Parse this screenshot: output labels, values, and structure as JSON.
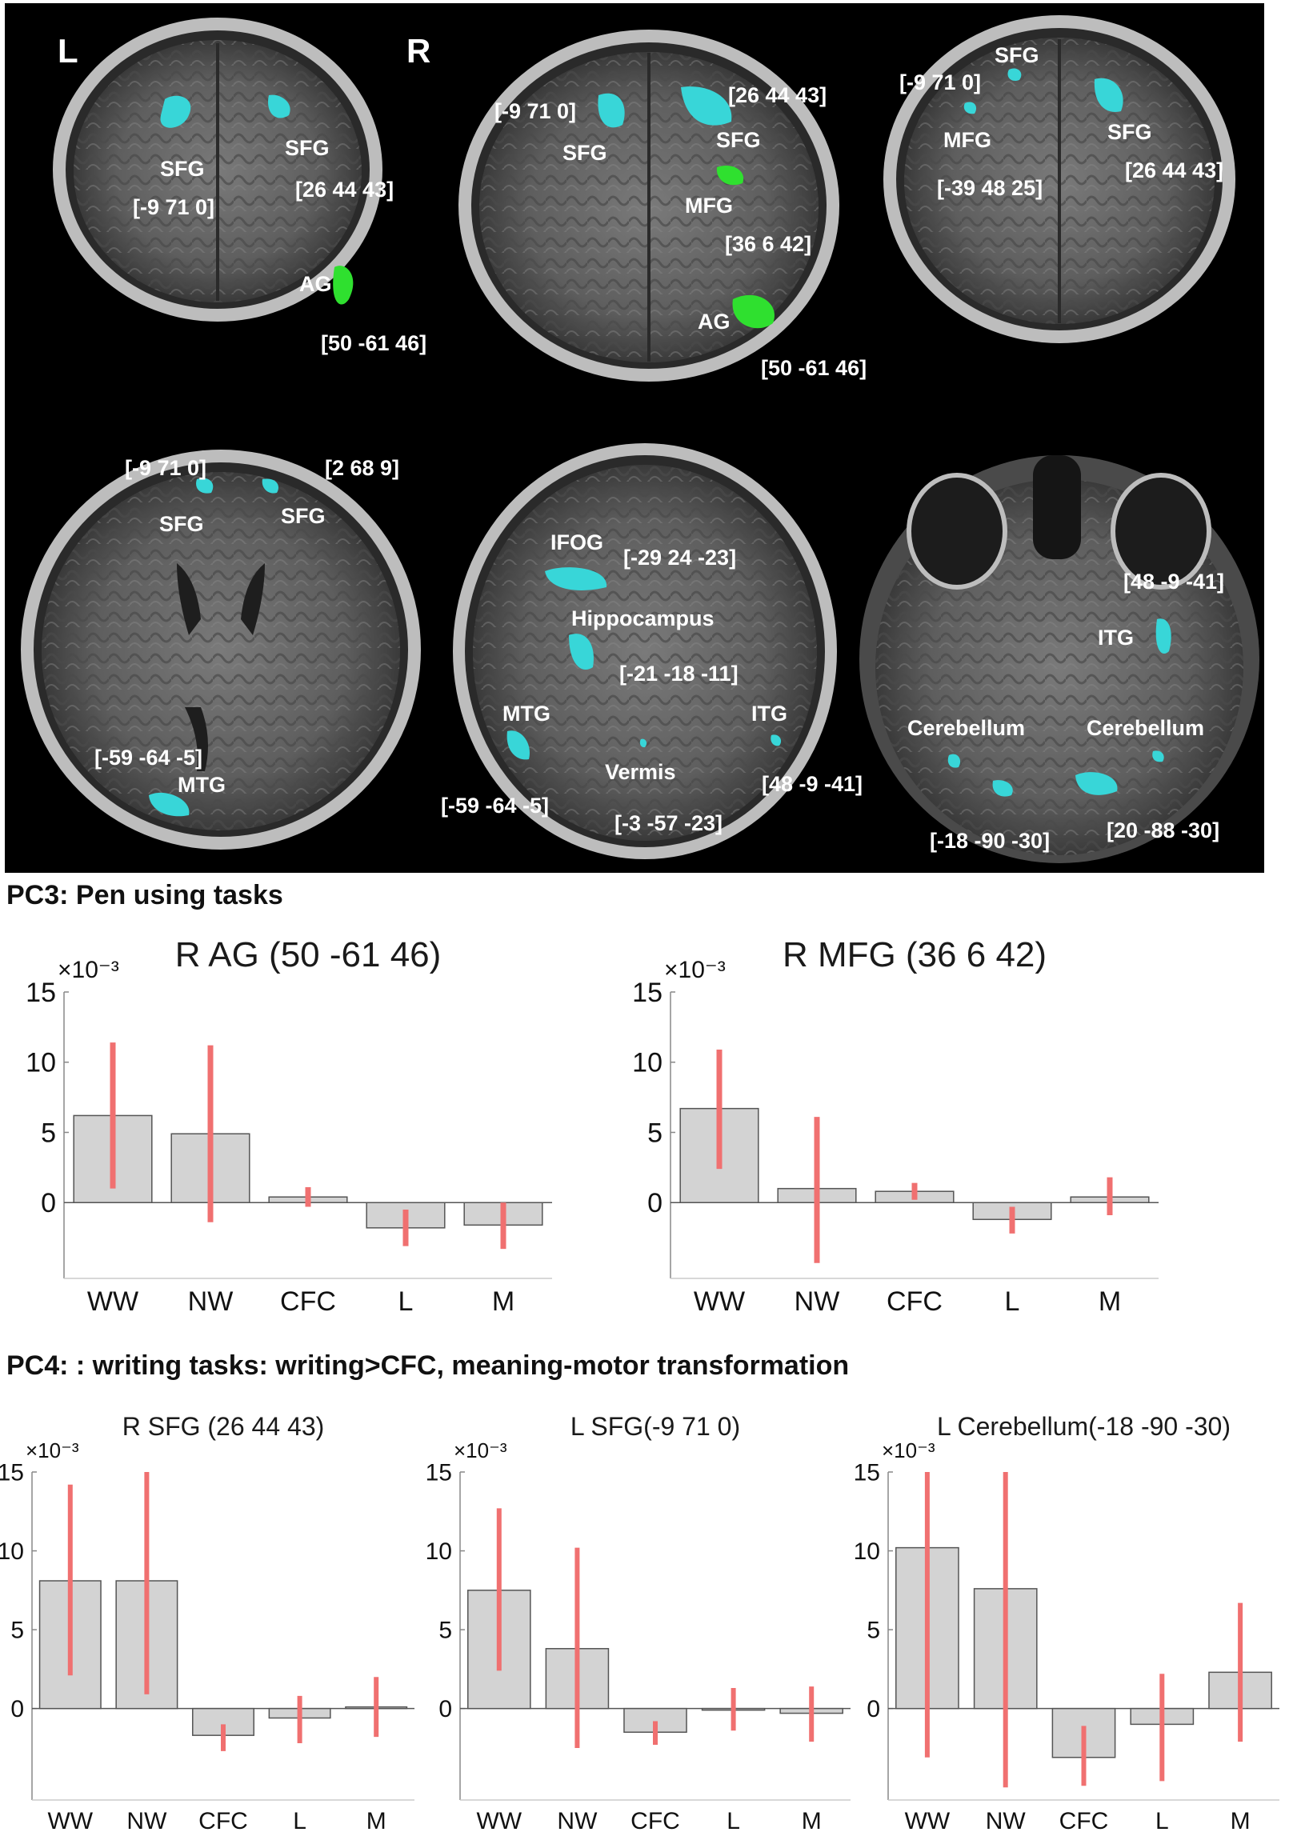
{
  "brain_figure": {
    "orientation": {
      "left": "L",
      "right": "R"
    },
    "colors": {
      "cyan_cluster": "#38d6d8",
      "green_cluster": "#2fe02f",
      "label": "#ffffff",
      "background": "#000000"
    },
    "slices": [
      {
        "labels": [
          {
            "text": "SFG"
          },
          {
            "text": "SFG"
          },
          {
            "text": "[-9 71 0]"
          },
          {
            "text": "[26 44 43]"
          },
          {
            "text": "AG"
          },
          {
            "text": "[50 -61 46]"
          }
        ]
      },
      {
        "labels": [
          {
            "text": "[-9 71 0]"
          },
          {
            "text": "[26 44 43]"
          },
          {
            "text": "SFG"
          },
          {
            "text": "SFG"
          },
          {
            "text": "MFG"
          },
          {
            "text": "[36 6 42]"
          },
          {
            "text": "AG"
          },
          {
            "text": "[50 -61 46]"
          }
        ]
      },
      {
        "labels": [
          {
            "text": "SFG"
          },
          {
            "text": "[-9 71 0]"
          },
          {
            "text": "MFG"
          },
          {
            "text": "SFG"
          },
          {
            "text": "[-39 48 25]"
          },
          {
            "text": "[26 44 43]"
          }
        ]
      },
      {
        "labels": [
          {
            "text": "[-9 71 0]"
          },
          {
            "text": "[2 68 9]"
          },
          {
            "text": "SFG"
          },
          {
            "text": "SFG"
          },
          {
            "text": "[-59 -64 -5]"
          },
          {
            "text": "MTG"
          }
        ]
      },
      {
        "labels": [
          {
            "text": "IFOG"
          },
          {
            "text": "[-29 24 -23]"
          },
          {
            "text": "Hippocampus"
          },
          {
            "text": "[-21 -18 -11]"
          },
          {
            "text": "MTG"
          },
          {
            "text": "ITG"
          },
          {
            "text": "Vermis"
          },
          {
            "text": "[48 -9 -41]"
          },
          {
            "text": "[-59 -64 -5]"
          },
          {
            "text": "[-3 -57 -23]"
          }
        ]
      },
      {
        "labels": [
          {
            "text": "[48 -9 -41]"
          },
          {
            "text": "ITG"
          },
          {
            "text": "Cerebellum"
          },
          {
            "text": "Cerebellum"
          },
          {
            "text": "[-18 -90 -30]"
          },
          {
            "text": "[20 -88 -30]"
          }
        ]
      }
    ]
  },
  "headings": {
    "pc3": "PC3: Pen using tasks",
    "pc4": "PC4: : writing tasks: writing>CFC, meaning-motor transformation"
  },
  "chart_style": {
    "bar_fill": "#d3d3d3",
    "bar_edge": "#555555",
    "error_color": "#f07070",
    "axis_color": "#888888"
  },
  "chart_data": [
    {
      "type": "bar",
      "title": "R AG (50 -61 46)",
      "categories": [
        "WW",
        "NW",
        "CFC",
        "L",
        "M"
      ],
      "values": [
        6.2,
        4.9,
        0.4,
        -1.8,
        -1.6
      ],
      "error_low": [
        1.0,
        -1.4,
        -0.3,
        -3.1,
        -3.3
      ],
      "error_high": [
        11.4,
        11.2,
        1.1,
        -0.5,
        0.0
      ],
      "ylim": [
        -5.4,
        15
      ],
      "yticks": [
        "0",
        "5",
        "10",
        "15"
      ],
      "ytick_values": [
        0,
        5,
        10,
        15
      ],
      "exponent": "×10⁻³",
      "xlabel": "",
      "ylabel": "",
      "grid": false
    },
    {
      "type": "bar",
      "title": "R MFG (36 6 42)",
      "categories": [
        "WW",
        "NW",
        "CFC",
        "L",
        "M"
      ],
      "values": [
        6.7,
        1.0,
        0.8,
        -1.2,
        0.4
      ],
      "error_low": [
        2.4,
        -4.3,
        0.2,
        -2.2,
        -0.9
      ],
      "error_high": [
        10.9,
        6.1,
        1.4,
        -0.3,
        1.8
      ],
      "ylim": [
        -5.4,
        15
      ],
      "yticks": [
        "0",
        "5",
        "10",
        "15"
      ],
      "ytick_values": [
        0,
        5,
        10,
        15
      ],
      "exponent": "×10⁻³",
      "xlabel": "",
      "ylabel": "",
      "grid": false
    },
    {
      "type": "bar",
      "title": "R SFG (26 44 43)",
      "categories": [
        "WW",
        "NW",
        "CFC",
        "L",
        "M"
      ],
      "values": [
        8.1,
        8.1,
        -1.7,
        -0.6,
        0.1
      ],
      "error_low": [
        2.1,
        0.9,
        -2.7,
        -2.2,
        -1.8
      ],
      "error_high": [
        14.2,
        15.1,
        -1.0,
        0.8,
        2.0
      ],
      "ylim": [
        -5.8,
        15
      ],
      "yticks": [
        "0",
        "5",
        "10",
        "15"
      ],
      "ytick_values": [
        0,
        5,
        10,
        15
      ],
      "exponent": "×10⁻³",
      "xlabel": "",
      "ylabel": "",
      "grid": false
    },
    {
      "type": "bar",
      "title": "L SFG(-9 71 0)",
      "categories": [
        "WW",
        "NW",
        "CFC",
        "L",
        "M"
      ],
      "values": [
        7.5,
        3.8,
        -1.5,
        -0.1,
        -0.3
      ],
      "error_low": [
        2.4,
        -2.5,
        -2.3,
        -1.4,
        -2.1
      ],
      "error_high": [
        12.7,
        10.2,
        -0.8,
        1.3,
        1.4
      ],
      "ylim": [
        -5.8,
        15
      ],
      "yticks": [
        "0",
        "5",
        "10",
        "15"
      ],
      "ytick_values": [
        0,
        5,
        10,
        15
      ],
      "exponent": "×10⁻³",
      "xlabel": "",
      "ylabel": "",
      "grid": false
    },
    {
      "type": "bar",
      "title": "L Cerebellum(-18 -90 -30)",
      "categories": [
        "WW",
        "NW",
        "CFC",
        "L",
        "M"
      ],
      "values": [
        10.2,
        7.6,
        -3.1,
        -1.0,
        2.3
      ],
      "error_low": [
        -3.1,
        -5.0,
        -4.9,
        -4.6,
        -2.1
      ],
      "error_high": [
        15.0,
        15.0,
        -1.1,
        2.2,
        6.7
      ],
      "ylim": [
        -5.8,
        15
      ],
      "yticks": [
        "0",
        "5",
        "10",
        "15"
      ],
      "ytick_values": [
        0,
        5,
        10,
        15
      ],
      "exponent": "×10⁻³",
      "xlabel": "",
      "ylabel": "",
      "grid": false
    }
  ]
}
